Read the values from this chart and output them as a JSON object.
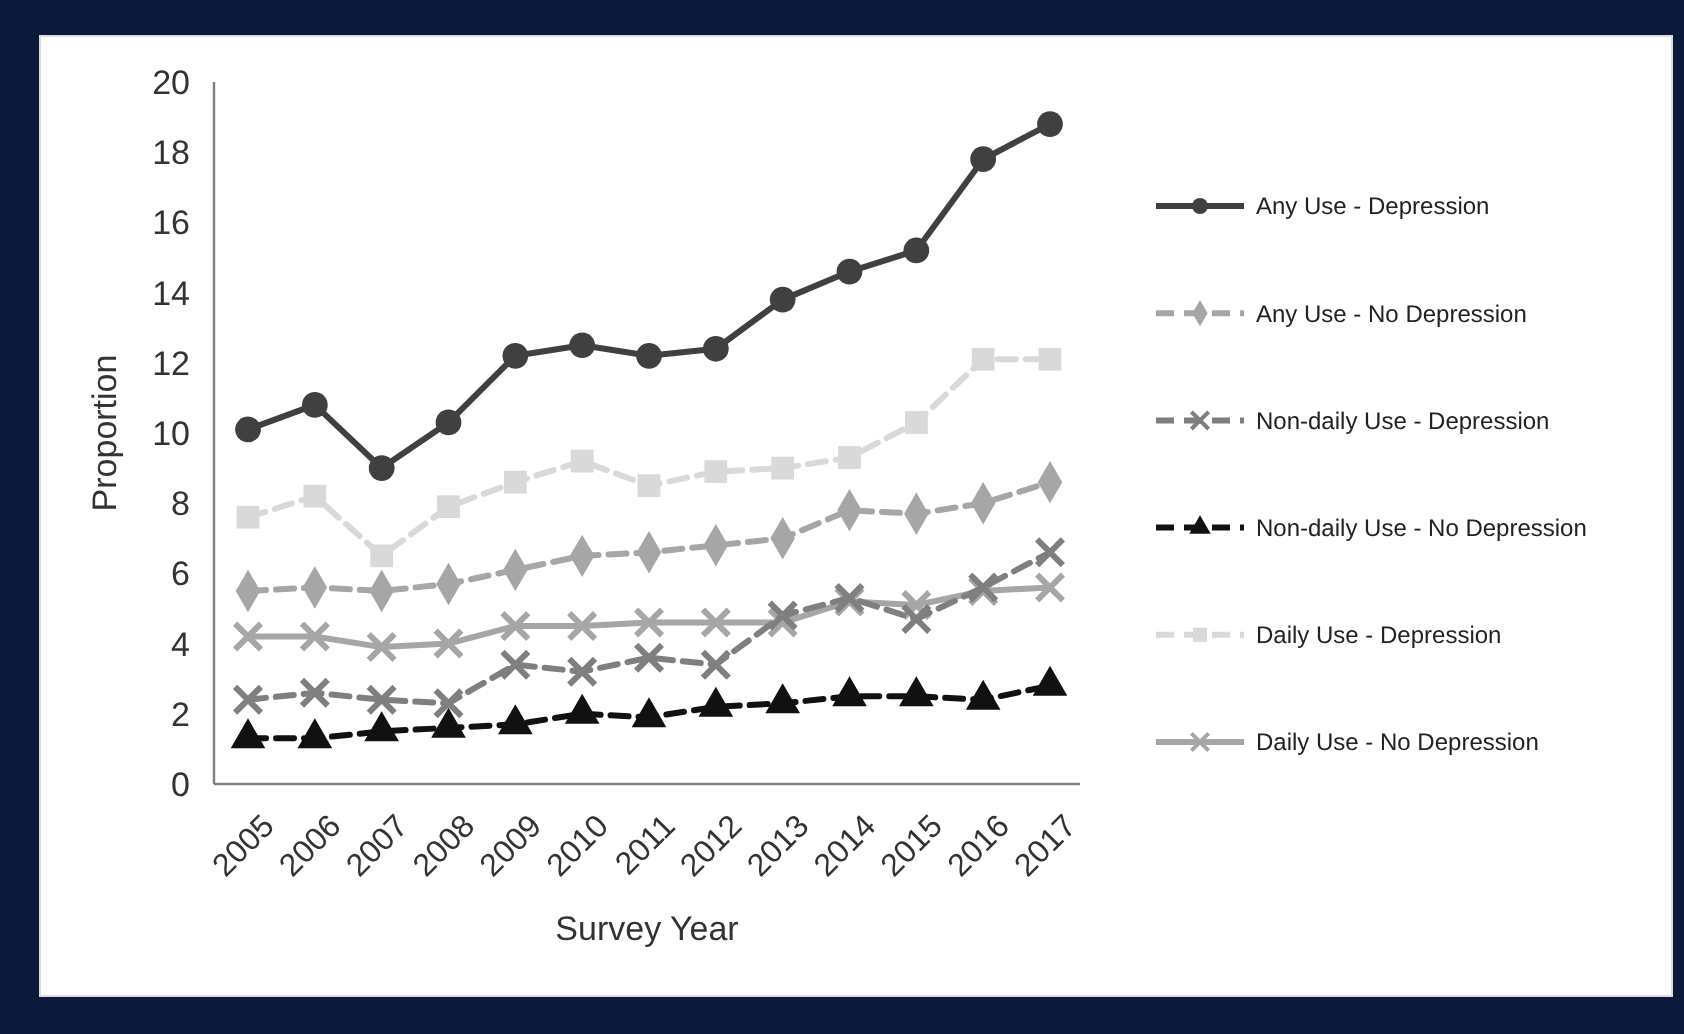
{
  "chart_data": {
    "type": "line",
    "xlabel": "Survey Year",
    "ylabel": "Proportion",
    "categories": [
      "2005",
      "2006",
      "2007",
      "2008",
      "2009",
      "2010",
      "2011",
      "2012",
      "2013",
      "2014",
      "2015",
      "2016",
      "2017"
    ],
    "ylim": [
      0,
      20
    ],
    "yticks": [
      0,
      2,
      4,
      6,
      8,
      10,
      12,
      14,
      16,
      18,
      20
    ],
    "grid": false,
    "legend": "right",
    "series": [
      {
        "name": "Any Use - Depression",
        "color": "#404040",
        "marker": "circle",
        "line_style": "solid",
        "values": [
          10.1,
          10.8,
          9.0,
          10.3,
          12.2,
          12.5,
          12.2,
          12.4,
          13.8,
          14.6,
          15.2,
          17.8,
          18.8
        ]
      },
      {
        "name": "Any Use - No Depression",
        "color": "#a6a6a6",
        "marker": "diamond",
        "line_style": "dashed",
        "values": [
          5.5,
          5.6,
          5.5,
          5.7,
          6.1,
          6.5,
          6.6,
          6.8,
          7.0,
          7.8,
          7.7,
          8.0,
          8.6
        ]
      },
      {
        "name": "Non-daily Use - Depression",
        "color": "#7f7f7f",
        "marker": "cross",
        "line_style": "dashed",
        "values": [
          2.4,
          2.6,
          2.4,
          2.3,
          3.4,
          3.2,
          3.6,
          3.4,
          4.8,
          5.3,
          4.7,
          5.6,
          6.6
        ]
      },
      {
        "name": "Non-daily Use - No Depression",
        "color": "#111111",
        "marker": "triangle",
        "line_style": "dashed",
        "values": [
          1.3,
          1.3,
          1.5,
          1.6,
          1.7,
          2.0,
          1.9,
          2.2,
          2.3,
          2.5,
          2.5,
          2.4,
          2.8
        ]
      },
      {
        "name": "Daily Use - Depression",
        "color": "#d9d9d9",
        "marker": "square",
        "line_style": "dashed",
        "values": [
          7.6,
          8.2,
          6.5,
          7.9,
          8.6,
          9.2,
          8.5,
          8.9,
          9.0,
          9.3,
          10.3,
          12.1,
          12.1
        ]
      },
      {
        "name": "Daily Use - No Depression",
        "color": "#a6a6a6",
        "marker": "cross",
        "line_style": "solid",
        "values": [
          4.2,
          4.2,
          3.9,
          4.0,
          4.5,
          4.5,
          4.6,
          4.6,
          4.6,
          5.2,
          5.1,
          5.5,
          5.6
        ]
      }
    ]
  }
}
